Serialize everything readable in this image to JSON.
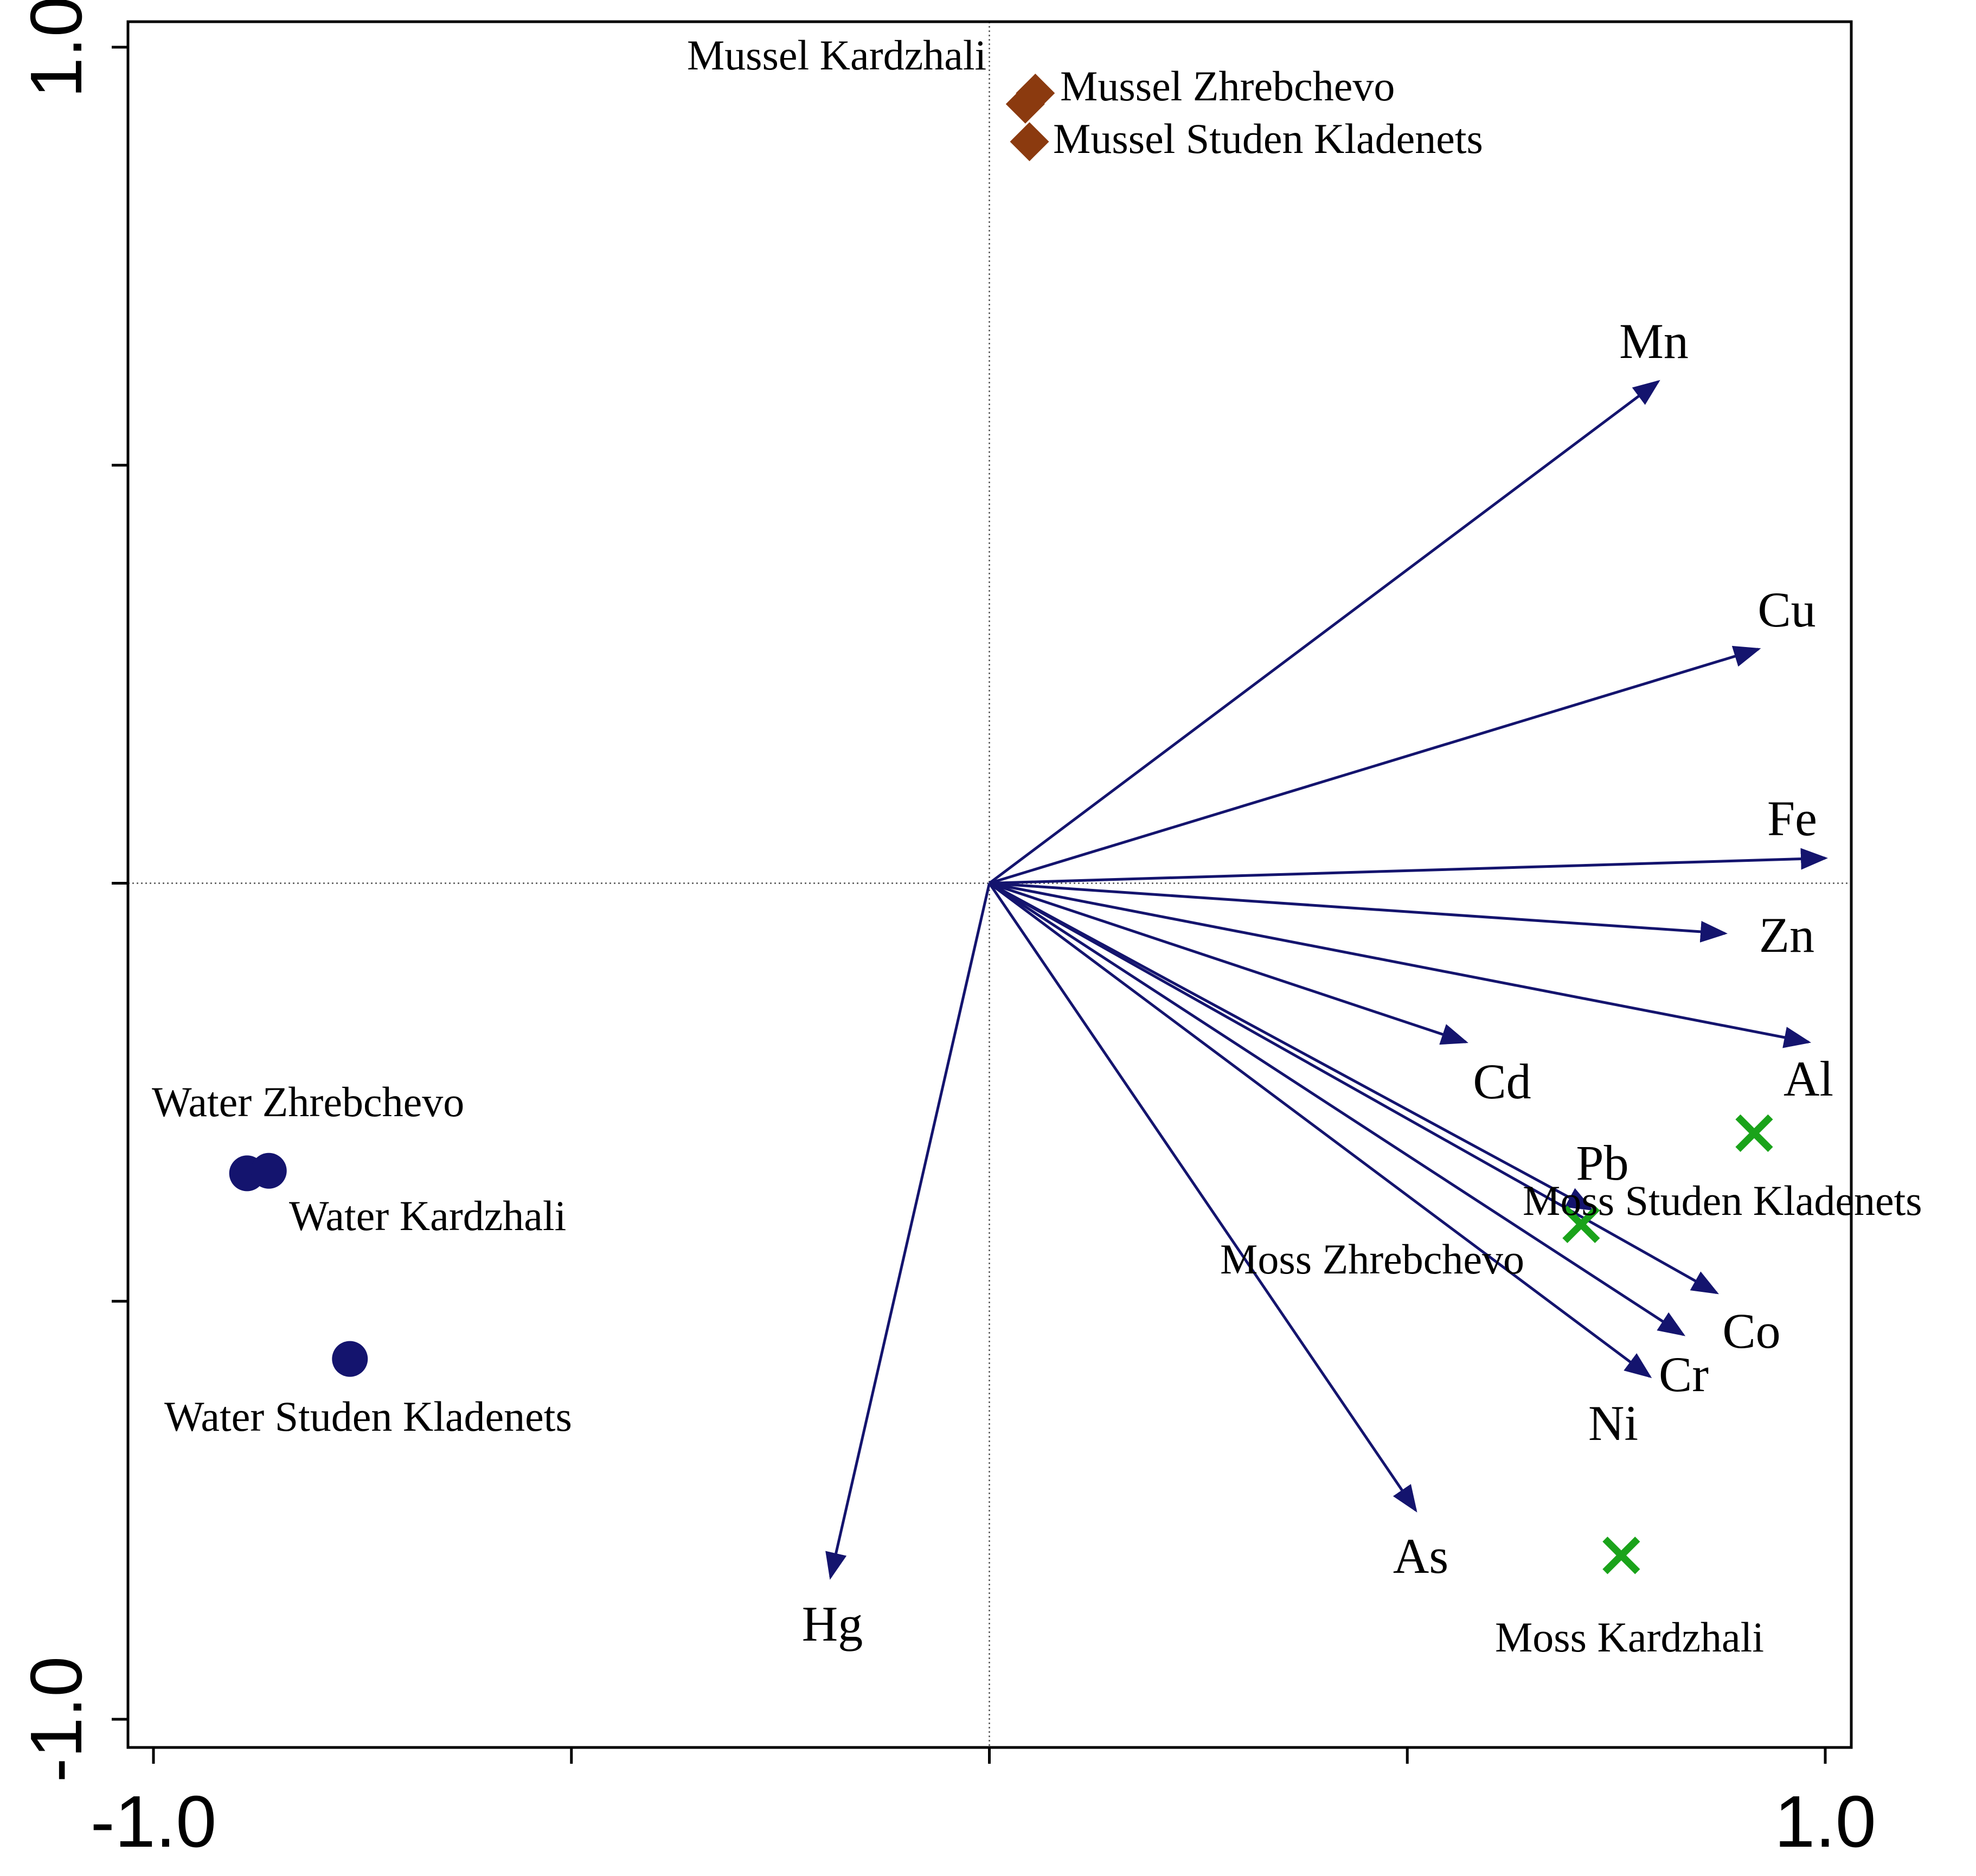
{
  "chart_data": {
    "type": "scatter",
    "title": "",
    "xlabel": "",
    "ylabel": "",
    "xlim": [
      -1.0,
      1.0
    ],
    "ylim": [
      -1.0,
      1.0
    ],
    "x_tick_labels": [
      "-1.0",
      "1.0"
    ],
    "y_tick_labels": [
      "-1.0",
      "1.0"
    ],
    "x_ticks": [
      -1.0,
      -0.5,
      0.0,
      0.5,
      1.0
    ],
    "y_ticks": [
      -1.0,
      -0.5,
      0.0,
      0.5,
      1.0
    ],
    "zero_lines": true,
    "colors": {
      "vectors": "#14146e",
      "water": "#14146e",
      "mussel": "#8b3a0f",
      "moss": "#1aa31a",
      "axis": "#000000",
      "zero_line": "#555555"
    },
    "vectors": [
      {
        "name": "Mn",
        "x": 0.8,
        "y": 0.6
      },
      {
        "name": "Cu",
        "x": 0.92,
        "y": 0.28
      },
      {
        "name": "Fe",
        "x": 1.0,
        "y": 0.03
      },
      {
        "name": "Zn",
        "x": 0.88,
        "y": -0.06
      },
      {
        "name": "Al",
        "x": 0.98,
        "y": -0.19
      },
      {
        "name": "Cd",
        "x": 0.57,
        "y": -0.19
      },
      {
        "name": "Pb",
        "x": 0.72,
        "y": -0.39
      },
      {
        "name": "Co",
        "x": 0.87,
        "y": -0.49
      },
      {
        "name": "Cr",
        "x": 0.83,
        "y": -0.54
      },
      {
        "name": "Ni",
        "x": 0.79,
        "y": -0.59
      },
      {
        "name": "As",
        "x": 0.51,
        "y": -0.75
      },
      {
        "name": "Hg",
        "x": -0.19,
        "y": -0.83
      }
    ],
    "samples": [
      {
        "name": "Mussel Kardzhali",
        "group": "mussel",
        "x": 0.043,
        "y": 0.932
      },
      {
        "name": "Mussel Zhrebchevo",
        "group": "mussel",
        "x": 0.055,
        "y": 0.945
      },
      {
        "name": "Mussel Studen Kladenets",
        "group": "mussel",
        "x": 0.048,
        "y": 0.887
      },
      {
        "name": "Water Zhrebchevo",
        "group": "water",
        "x": -0.888,
        "y": -0.347
      },
      {
        "name": "Water Kardzhali",
        "group": "water",
        "x": -0.862,
        "y": -0.344
      },
      {
        "name": "Water Studen Kladenets",
        "group": "water",
        "x": -0.765,
        "y": -0.569
      },
      {
        "name": "Moss Studen Kladenets",
        "group": "moss",
        "x": 0.915,
        "y": -0.299
      },
      {
        "name": "Moss Zhrebchevo",
        "group": "moss",
        "x": 0.708,
        "y": -0.408
      },
      {
        "name": "Moss Kardzhali",
        "group": "moss",
        "x": 0.756,
        "y": -0.804
      }
    ]
  }
}
